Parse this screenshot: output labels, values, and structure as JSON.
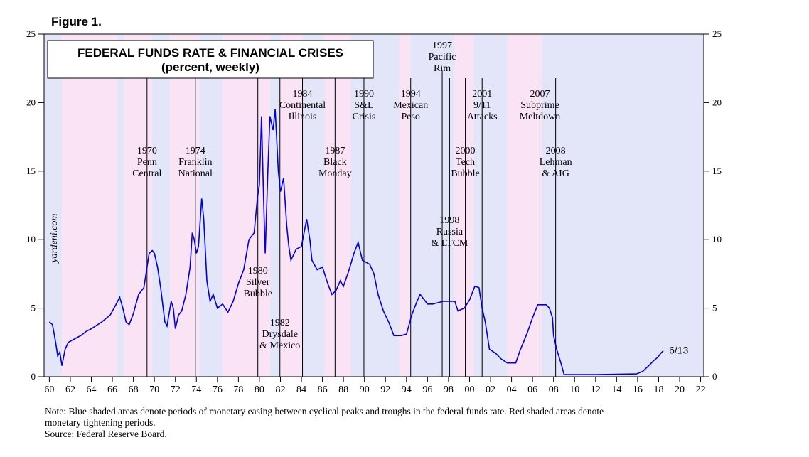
{
  "chart_data": {
    "type": "line",
    "figure": "Figure 1.",
    "title": "FEDERAL FUNDS RATE & FINANCIAL CRISES",
    "subtitle": "(percent, weekly)",
    "watermark": "yardeni.com",
    "xlim": [
      1959.5,
      2022.3
    ],
    "ylim": [
      0,
      25
    ],
    "yticks": [
      0,
      5,
      10,
      15,
      20,
      25
    ],
    "xticks": [
      {
        "value": 1960,
        "label": "60"
      },
      {
        "value": 1962,
        "label": "62"
      },
      {
        "value": 1964,
        "label": "64"
      },
      {
        "value": 1966,
        "label": "66"
      },
      {
        "value": 1968,
        "label": "68"
      },
      {
        "value": 1970,
        "label": "70"
      },
      {
        "value": 1972,
        "label": "72"
      },
      {
        "value": 1974,
        "label": "74"
      },
      {
        "value": 1976,
        "label": "76"
      },
      {
        "value": 1978,
        "label": "78"
      },
      {
        "value": 1980,
        "label": "80"
      },
      {
        "value": 1982,
        "label": "82"
      },
      {
        "value": 1984,
        "label": "84"
      },
      {
        "value": 1986,
        "label": "86"
      },
      {
        "value": 1988,
        "label": "88"
      },
      {
        "value": 1990,
        "label": "90"
      },
      {
        "value": 1992,
        "label": "92"
      },
      {
        "value": 1994,
        "label": "94"
      },
      {
        "value": 1996,
        "label": "96"
      },
      {
        "value": 1998,
        "label": "98"
      },
      {
        "value": 2000,
        "label": "00"
      },
      {
        "value": 2002,
        "label": "02"
      },
      {
        "value": 2004,
        "label": "04"
      },
      {
        "value": 2006,
        "label": "06"
      },
      {
        "value": 2008,
        "label": "08"
      },
      {
        "value": 2010,
        "label": "10"
      },
      {
        "value": 2012,
        "label": "12"
      },
      {
        "value": 2014,
        "label": "14"
      },
      {
        "value": 2016,
        "label": "16"
      },
      {
        "value": 2018,
        "label": "18"
      },
      {
        "value": 2020,
        "label": "20"
      },
      {
        "value": 2022,
        "label": "22"
      }
    ],
    "periods": [
      {
        "start": 1959.5,
        "end": 1961.2,
        "color": "#e3e5f8"
      },
      {
        "start": 1961.2,
        "end": 1966.5,
        "color": "#fbe3f6"
      },
      {
        "start": 1966.5,
        "end": 1967.1,
        "color": "#e3e5f8"
      },
      {
        "start": 1967.1,
        "end": 1969.8,
        "color": "#fbe3f6"
      },
      {
        "start": 1969.8,
        "end": 1971.5,
        "color": "#e3e5f8"
      },
      {
        "start": 1971.5,
        "end": 1974.3,
        "color": "#fbe3f6"
      },
      {
        "start": 1974.3,
        "end": 1976.5,
        "color": "#e3e5f8"
      },
      {
        "start": 1976.5,
        "end": 1981.0,
        "color": "#fbe3f6"
      },
      {
        "start": 1981.0,
        "end": 1982.0,
        "color": "#e3e5f8"
      },
      {
        "start": 1982.0,
        "end": 1984.1,
        "color": "#fbe3f6"
      },
      {
        "start": 1984.1,
        "end": 1986.2,
        "color": "#e3e5f8"
      },
      {
        "start": 1986.2,
        "end": 1988.7,
        "color": "#fbe3f6"
      },
      {
        "start": 1988.7,
        "end": 1993.3,
        "color": "#e3e5f8"
      },
      {
        "start": 1993.3,
        "end": 1994.4,
        "color": "#fbe3f6"
      },
      {
        "start": 1994.4,
        "end": 1998.6,
        "color": "#e3e5f8"
      },
      {
        "start": 1998.6,
        "end": 2000.4,
        "color": "#fbe3f6"
      },
      {
        "start": 2000.4,
        "end": 2003.6,
        "color": "#e3e5f8"
      },
      {
        "start": 2003.6,
        "end": 2006.9,
        "color": "#fbe3f6"
      },
      {
        "start": 2006.9,
        "end": 2022.3,
        "color": "#e3e5f8"
      }
    ],
    "events": [
      {
        "x": 1969.3,
        "text": [
          "1970",
          "Penn",
          "Central"
        ]
      },
      {
        "x": 1973.9,
        "text": [
          "1974",
          "Franklin",
          "National"
        ]
      },
      {
        "x": 1979.85,
        "text": [
          "1980",
          "Silver",
          "Bubble"
        ]
      },
      {
        "x": 1981.95,
        "text": [
          "1982",
          "Drysdale",
          "& Mexico"
        ]
      },
      {
        "x": 1984.1,
        "text": [
          "1984",
          "Continental",
          "Illinois"
        ]
      },
      {
        "x": 1987.2,
        "text": [
          "1987",
          "Black",
          "Monday"
        ]
      },
      {
        "x": 1989.95,
        "text": [
          "1990",
          "S&L",
          "Crisis"
        ]
      },
      {
        "x": 1994.4,
        "text": [
          "1994",
          "Mexican",
          "Peso"
        ]
      },
      {
        "x": 1997.4,
        "text": [
          "1997",
          "Pacific",
          "Rim"
        ]
      },
      {
        "x": 1998.1,
        "text": [
          "1998",
          "Russia",
          "& LTCM"
        ]
      },
      {
        "x": 1999.6,
        "text": [
          "2000",
          "Tech",
          "Bubble"
        ]
      },
      {
        "x": 2001.2,
        "text": [
          "2001",
          "9/11",
          "Attacks"
        ]
      },
      {
        "x": 2006.7,
        "text": [
          "2007",
          "Subprime",
          "Meltdown"
        ]
      },
      {
        "x": 2008.2,
        "text": [
          "2008",
          "Lehman",
          "& AIG"
        ]
      }
    ],
    "end_label": "6/13",
    "series": [
      {
        "name": "Federal funds rate",
        "color": "#0000dd",
        "x": [
          1960.0,
          1960.3,
          1960.6,
          1960.8,
          1961.0,
          1961.2,
          1961.5,
          1961.8,
          1962.5,
          1963.0,
          1963.5,
          1964.0,
          1965.0,
          1965.8,
          1966.3,
          1966.7,
          1967.0,
          1967.3,
          1967.6,
          1968.0,
          1968.5,
          1969.0,
          1969.5,
          1969.8,
          1970.0,
          1970.3,
          1970.6,
          1971.0,
          1971.2,
          1971.6,
          1971.8,
          1972.0,
          1972.3,
          1972.6,
          1973.0,
          1973.4,
          1973.6,
          1973.8,
          1974.0,
          1974.2,
          1974.5,
          1974.7,
          1975.0,
          1975.3,
          1975.6,
          1976.0,
          1976.5,
          1977.0,
          1977.5,
          1978.0,
          1978.5,
          1979.0,
          1979.5,
          1979.8,
          1980.0,
          1980.2,
          1980.4,
          1980.55,
          1980.8,
          1981.0,
          1981.3,
          1981.5,
          1981.8,
          1982.0,
          1982.3,
          1982.6,
          1982.8,
          1983.0,
          1983.5,
          1984.0,
          1984.5,
          1984.8,
          1985.0,
          1985.5,
          1986.0,
          1986.5,
          1986.9,
          1987.3,
          1987.7,
          1988.0,
          1988.5,
          1989.0,
          1989.4,
          1989.8,
          1990.5,
          1990.9,
          1991.3,
          1991.8,
          1992.3,
          1992.8,
          1993.5,
          1994.0,
          1994.5,
          1995.0,
          1995.3,
          1996.0,
          1996.5,
          1997.0,
          1997.5,
          1998.0,
          1998.6,
          1998.9,
          1999.5,
          2000.0,
          2000.5,
          2000.9,
          2001.2,
          2001.5,
          2001.9,
          2002.5,
          2003.0,
          2003.6,
          2004.4,
          2004.8,
          2005.5,
          2006.0,
          2006.5,
          2007.3,
          2007.6,
          2007.9,
          2008.0,
          2008.3,
          2008.7,
          2009.0,
          2012.0,
          2015.9,
          2016.5,
          2017.2,
          2017.5,
          2017.9,
          2018.2,
          2018.45
        ],
        "values": [
          4.0,
          3.8,
          2.5,
          1.5,
          1.8,
          0.8,
          2.0,
          2.5,
          2.8,
          3.0,
          3.3,
          3.5,
          4.0,
          4.5,
          5.2,
          5.8,
          5.0,
          4.0,
          3.8,
          4.6,
          6.0,
          6.5,
          9.0,
          9.2,
          9.0,
          8.0,
          6.5,
          4.0,
          3.7,
          5.5,
          5.0,
          3.5,
          4.5,
          4.8,
          6.0,
          8.0,
          10.5,
          10.0,
          9.0,
          9.5,
          13.0,
          11.5,
          7.0,
          5.5,
          6.0,
          5.0,
          5.3,
          4.7,
          5.5,
          6.8,
          7.8,
          10.0,
          10.5,
          13.0,
          14.0,
          19.0,
          13.0,
          9.0,
          15.0,
          19.0,
          18.0,
          19.5,
          15.0,
          13.5,
          14.5,
          11.0,
          9.5,
          8.5,
          9.3,
          9.5,
          11.5,
          10.0,
          8.5,
          7.8,
          8.0,
          6.8,
          6.0,
          6.3,
          7.0,
          6.6,
          7.7,
          9.0,
          9.8,
          8.5,
          8.2,
          7.5,
          6.0,
          4.8,
          4.0,
          3.0,
          3.0,
          3.1,
          4.5,
          5.5,
          6.0,
          5.3,
          5.3,
          5.4,
          5.5,
          5.5,
          5.5,
          4.8,
          5.0,
          5.6,
          6.6,
          6.5,
          5.0,
          4.0,
          2.0,
          1.7,
          1.3,
          1.0,
          1.0,
          1.9,
          3.2,
          4.3,
          5.25,
          5.25,
          5.0,
          4.3,
          3.0,
          2.0,
          1.0,
          0.15,
          0.15,
          0.2,
          0.4,
          0.9,
          1.15,
          1.4,
          1.7,
          1.9
        ]
      }
    ],
    "notes": [
      "Note: Blue shaded areas denote periods of monetary easing between cyclical peaks and troughs in the federal funds rate. Red shaded areas denote",
      "monetary tightening periods.",
      "Source: Federal Reserve Board."
    ]
  }
}
